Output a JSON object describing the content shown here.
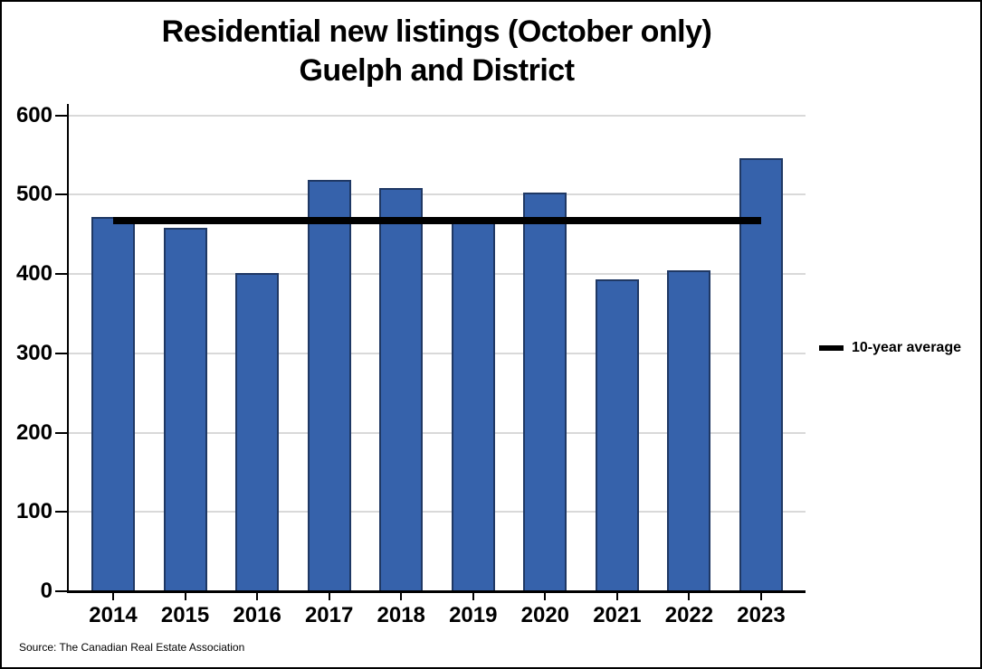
{
  "title": {
    "line1": "Residential new listings (October only)",
    "line2": "Guelph and District"
  },
  "legend": {
    "label": "10-year average"
  },
  "source": "Source: The Canadian Real Estate Association",
  "colors": {
    "bar_fill": "#3662AB",
    "bar_border": "#1F3864",
    "average_line": "#000000",
    "gridline": "#D9D9D9",
    "axis": "#000000",
    "background": "#FFFFFF"
  },
  "chart_data": {
    "type": "bar",
    "title": "Residential new listings (October only) — Guelph and District",
    "categories": [
      "2014",
      "2015",
      "2016",
      "2017",
      "2018",
      "2019",
      "2020",
      "2021",
      "2022",
      "2023"
    ],
    "series": [
      {
        "name": "Residential new listings (October)",
        "values": [
          472,
          458,
          401,
          518,
          508,
          472,
          502,
          393,
          405,
          546
        ]
      }
    ],
    "average_line": {
      "label": "10-year average",
      "value": 467.5
    },
    "y_axis": {
      "min": 0,
      "max": 600,
      "tick_interval": 100,
      "ticks": [
        0,
        100,
        200,
        300,
        400,
        500,
        600
      ]
    },
    "xlabel": "",
    "ylabel": "",
    "grid": true,
    "legend_position": "right"
  }
}
